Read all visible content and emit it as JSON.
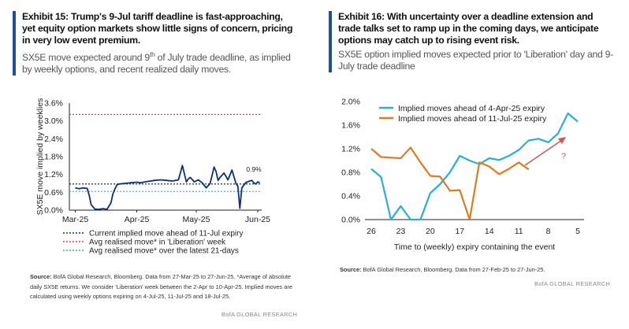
{
  "exhibit15": {
    "title": "Exhibit 15: Trump's 9-Jul tariff deadline is fast-approaching, yet equity option markets show little signs of concern, pricing in very low event premium.",
    "subtitle_a": "SX5E move expected around 9",
    "subtitle_sup": "th",
    "subtitle_b": " of July trade deadline, as implied by weekly options, and recent realized daily moves.",
    "source_label": "Source:",
    "source_text": " BofA Global Research, Bloomberg. Data from 27-Mar-25 to 27-Jun-25. *Average of absolute daily SX5E returns. We consider 'Liberation' week between the 2-Apr to 10-Apr-25. Implied moves are calculated using weekly options expiring on 4-Jul-25, 11-Jul-25 and 18-Jul-25.",
    "brand": "BofA GLOBAL RESEARCH"
  },
  "exhibit16": {
    "title": "Exhibit 16: With uncertainty over a deadline extension and trade talks set to ramp up in the coming days, we anticipate options may catch up to rising event risk.",
    "subtitle": "SX5E option implied moves expected prior to 'Liberation' day and 9-July trade deadline",
    "source_label": "Source:",
    "source_text": " BofA Global Research, Bloomberg. Data from 27-Feb-25 to 27-Jun-25.",
    "brand": "BofA GLOBAL RESEARCH"
  },
  "chart_data": [
    {
      "type": "line",
      "title": "Exhibit 15",
      "ylabel": "SX5E move implied by weeklies",
      "ylim": [
        0,
        3.6
      ],
      "yticks": [
        "0.0%",
        "0.6%",
        "1.2%",
        "1.8%",
        "2.4%",
        "3.0%",
        "3.6%"
      ],
      "xticks": [
        "Mar-25",
        "Apr-25",
        "May-25",
        "Jun-25"
      ],
      "xlim_days": [
        -3,
        94
      ],
      "xtick_days": [
        0,
        31,
        61,
        92
      ],
      "annotation": "0.9%",
      "colors": {
        "implied": "#0b2f7a",
        "current": "#0b2f7a",
        "liberation": "#e0454a",
        "recent": "#2aaed8"
      },
      "implied_series": {
        "x": [
          0,
          2,
          4,
          6,
          7,
          8,
          10,
          12,
          14,
          16,
          18,
          19,
          20,
          21,
          22,
          25,
          28,
          31,
          33,
          35,
          37,
          40,
          43,
          46,
          49,
          52,
          54,
          56,
          57,
          58,
          60,
          62,
          64,
          66,
          68,
          70,
          71,
          72,
          73,
          75,
          77,
          79,
          81,
          82,
          83,
          84,
          86,
          88,
          89,
          90,
          91,
          92,
          93
        ],
        "y": [
          0.75,
          0.72,
          0.75,
          0.73,
          0.5,
          0.18,
          0.03,
          0.03,
          0.05,
          0.03,
          0.25,
          0.55,
          0.72,
          0.85,
          0.88,
          0.9,
          0.92,
          0.94,
          0.92,
          0.95,
          0.97,
          1.0,
          1.02,
          1.0,
          0.98,
          1.02,
          1.5,
          0.95,
          1.05,
          1.1,
          0.95,
          1.02,
          0.92,
          0.75,
          0.9,
          1.45,
          1.3,
          1.0,
          1.1,
          1.25,
          1.02,
          1.35,
          0.9,
          0.8,
          0.06,
          0.75,
          0.93,
          0.98,
          1.0,
          0.92,
          0.88,
          0.95,
          0.92
        ]
      },
      "reference_lines": [
        {
          "name": "Current implied move ahead of 11-Jul expiry",
          "value": 0.88,
          "style": "dotted"
        },
        {
          "name": "Avg realised move* in 'Liberation' week",
          "value": 3.22,
          "style": "dotted"
        },
        {
          "name": "Avg realised move* over the latest 21-days",
          "value": 0.63,
          "style": "dotted"
        }
      ],
      "legend": [
        "Current implied move ahead of 11-Jul expiry",
        "Avg realised move* in 'Liberation' week",
        "Avg realised move* over the latest 21-days"
      ]
    },
    {
      "type": "line",
      "title": "Exhibit 16",
      "xlabel": "Time to (weekly) expiry containing the event",
      "ylim": [
        0,
        2.0
      ],
      "yticks": [
        "0.0%",
        "0.4%",
        "0.8%",
        "1.2%",
        "1.6%",
        "2.0%"
      ],
      "xlim_days": [
        26,
        5
      ],
      "xticks": [
        "26",
        "23",
        "20",
        "17",
        "14",
        "11",
        "8",
        "5"
      ],
      "xtick_days": [
        26,
        23,
        20,
        17,
        14,
        11,
        8,
        5
      ],
      "annotation": "?",
      "series": [
        {
          "name": "Implied moves ahead of 4-Apr-25 expiry",
          "color": "#2aaed8",
          "x": [
            26,
            25,
            24,
            23,
            22,
            21,
            20,
            19,
            18,
            17,
            16,
            15,
            14,
            13,
            12,
            11,
            10,
            9,
            8,
            7,
            6,
            5
          ],
          "y": [
            0.86,
            0.72,
            0.0,
            0.23,
            0.0,
            0.0,
            0.45,
            0.6,
            0.8,
            1.08,
            1.0,
            0.94,
            1.04,
            1.01,
            1.08,
            1.18,
            1.34,
            1.37,
            1.31,
            1.46,
            1.8,
            1.66
          ]
        },
        {
          "name": "Implied moves ahead of 11-Jul-25 expiry",
          "color": "#e07a1e",
          "x": [
            26,
            25,
            24,
            23,
            22,
            21,
            20,
            19,
            18,
            17,
            16,
            15,
            14,
            13,
            12,
            11,
            10
          ],
          "y": [
            1.2,
            1.06,
            1.05,
            1.04,
            1.22,
            0.97,
            0.74,
            0.73,
            0.49,
            0.5,
            0.0,
            0.97,
            0.9,
            0.77,
            0.86,
            0.97,
            0.85
          ]
        }
      ]
    }
  ]
}
